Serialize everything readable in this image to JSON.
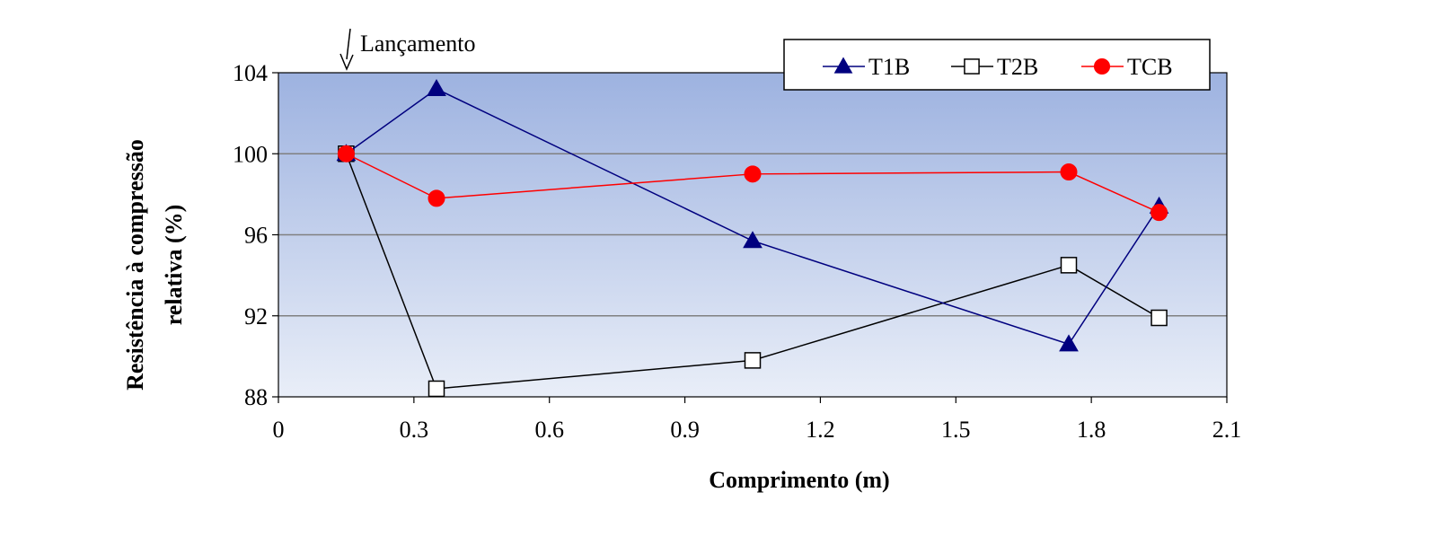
{
  "chart_data": {
    "type": "line",
    "xlabel": "Comprimento (m)",
    "ylabel_lines": [
      "Resistência à compressão",
      "relativa (%)"
    ],
    "xlim": [
      0,
      2.1
    ],
    "ylim": [
      88,
      104
    ],
    "xticks": [
      "0",
      "0.3",
      "0.6",
      "0.9",
      "1.2",
      "1.5",
      "1.8",
      "2.1"
    ],
    "yticks": [
      "88",
      "92",
      "96",
      "100",
      "104"
    ],
    "grid": "horizontal",
    "legend_position": "top-right",
    "annotation": {
      "text": "Lançamento",
      "x": 0.15
    },
    "series": [
      {
        "name": "T1B",
        "color": "#00007f",
        "marker": "triangle",
        "x": [
          0.15,
          0.35,
          1.05,
          1.75,
          1.95
        ],
        "y": [
          100,
          103.2,
          95.7,
          90.6,
          97.4
        ]
      },
      {
        "name": "T2B",
        "color": "#000000",
        "marker": "square",
        "x": [
          0.15,
          0.35,
          1.05,
          1.75,
          1.95
        ],
        "y": [
          100,
          88.4,
          89.8,
          94.5,
          91.9
        ]
      },
      {
        "name": "TCB",
        "color": "#ff0000",
        "marker": "circle",
        "x": [
          0.15,
          0.35,
          1.05,
          1.75,
          1.95
        ],
        "y": [
          100,
          97.8,
          99.0,
          99.1,
          97.1
        ]
      }
    ]
  }
}
